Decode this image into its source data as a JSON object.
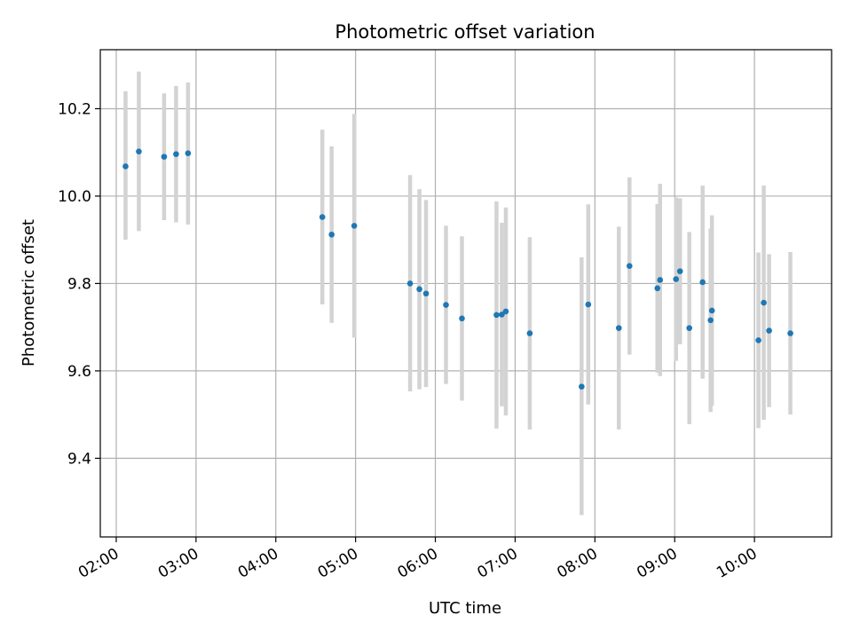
{
  "chart_data": {
    "type": "scatter",
    "title": "Photometric offset variation",
    "xlabel": "UTC time",
    "ylabel": "Photometric offset",
    "x_ticks": [
      "02:00",
      "03:00",
      "04:00",
      "05:00",
      "06:00",
      "07:00",
      "08:00",
      "09:00",
      "10:00"
    ],
    "y_ticks": [
      "9.4",
      "9.6",
      "9.8",
      "10.0",
      "10.2"
    ],
    "xlim": [
      "01:48",
      "10:58"
    ],
    "ylim": [
      9.22,
      10.335
    ],
    "grid": true,
    "marker_color": "#1f77b4",
    "errorbar_color": "#d3d3d3",
    "points": [
      {
        "time": "02:07",
        "value": 10.068,
        "low": 9.9,
        "high": 10.24
      },
      {
        "time": "02:17",
        "value": 10.102,
        "low": 9.92,
        "high": 10.285
      },
      {
        "time": "02:36",
        "value": 10.09,
        "low": 9.945,
        "high": 10.235
      },
      {
        "time": "02:45",
        "value": 10.096,
        "low": 9.94,
        "high": 10.252
      },
      {
        "time": "02:54",
        "value": 10.098,
        "low": 9.935,
        "high": 10.26
      },
      {
        "time": "04:35",
        "value": 9.952,
        "low": 9.752,
        "high": 10.152
      },
      {
        "time": "04:42",
        "value": 9.912,
        "low": 9.71,
        "high": 10.114
      },
      {
        "time": "04:59",
        "value": 9.932,
        "low": 9.676,
        "high": 10.188
      },
      {
        "time": "05:41",
        "value": 9.8,
        "low": 9.553,
        "high": 10.048
      },
      {
        "time": "05:48",
        "value": 9.787,
        "low": 9.558,
        "high": 10.016
      },
      {
        "time": "05:53",
        "value": 9.777,
        "low": 9.563,
        "high": 9.991
      },
      {
        "time": "06:08",
        "value": 9.751,
        "low": 9.57,
        "high": 9.932
      },
      {
        "time": "06:20",
        "value": 9.72,
        "low": 9.532,
        "high": 9.908
      },
      {
        "time": "06:46",
        "value": 9.728,
        "low": 9.468,
        "high": 9.988
      },
      {
        "time": "06:50",
        "value": 9.729,
        "low": 9.519,
        "high": 9.939
      },
      {
        "time": "06:53",
        "value": 9.736,
        "low": 9.498,
        "high": 9.974
      },
      {
        "time": "07:11",
        "value": 9.686,
        "low": 9.466,
        "high": 9.906
      },
      {
        "time": "07:50",
        "value": 9.564,
        "low": 9.27,
        "high": 9.86
      },
      {
        "time": "07:55",
        "value": 9.752,
        "low": 9.523,
        "high": 9.981
      },
      {
        "time": "08:18",
        "value": 9.698,
        "low": 9.466,
        "high": 9.93
      },
      {
        "time": "08:26",
        "value": 9.84,
        "low": 9.637,
        "high": 10.043
      },
      {
        "time": "08:47",
        "value": 9.789,
        "low": 9.596,
        "high": 9.982
      },
      {
        "time": "08:49",
        "value": 9.808,
        "low": 9.588,
        "high": 10.028
      },
      {
        "time": "09:01",
        "value": 9.81,
        "low": 9.623,
        "high": 9.997
      },
      {
        "time": "09:04",
        "value": 9.828,
        "low": 9.661,
        "high": 9.995
      },
      {
        "time": "09:11",
        "value": 9.698,
        "low": 9.478,
        "high": 9.918
      },
      {
        "time": "09:21",
        "value": 9.803,
        "low": 9.582,
        "high": 10.024
      },
      {
        "time": "09:27",
        "value": 9.716,
        "low": 9.506,
        "high": 9.926
      },
      {
        "time": "09:28",
        "value": 9.738,
        "low": 9.52,
        "high": 9.956
      },
      {
        "time": "10:03",
        "value": 9.67,
        "low": 9.469,
        "high": 9.871
      },
      {
        "time": "10:07",
        "value": 9.756,
        "low": 9.488,
        "high": 10.024
      },
      {
        "time": "10:11",
        "value": 9.692,
        "low": 9.517,
        "high": 9.867
      },
      {
        "time": "10:27",
        "value": 9.686,
        "low": 9.5,
        "high": 9.872
      }
    ]
  }
}
